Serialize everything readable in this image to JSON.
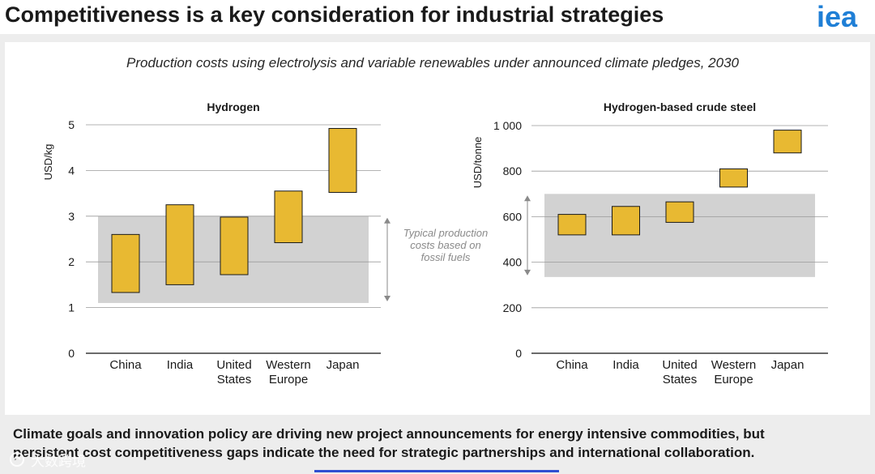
{
  "header": {
    "title": "Competitiveness is a key consideration for industrial strategies",
    "logo_text": "iea"
  },
  "subtitle": "Production costs using electrolysis and variable renewables under announced climate pledges, 2030",
  "footer": {
    "line1": "Climate goals and innovation policy are driving new project announcements for energy intensive commodities, but",
    "line2": "persistent cost competitiveness gaps indicate the need for strategic partnerships and international collaboration."
  },
  "watermark": {
    "text": "大数跨境"
  },
  "colors": {
    "bar_fill": "#e8b932",
    "bar_stroke": "#1a1a1a",
    "band_fill": "#d2d2d2",
    "grid": "#9a9a9a",
    "annotation": "#8a8a8a",
    "accent_line": "#2f4fd1"
  },
  "chart_data": [
    {
      "type": "floating-bar",
      "title": "Hydrogen",
      "ylabel": "USD/kg",
      "xlabel": "",
      "ylim": [
        0,
        5
      ],
      "ticks": [
        {
          "value": 0,
          "label": "0"
        },
        {
          "value": 1,
          "label": "1"
        },
        {
          "value": 2,
          "label": "2"
        },
        {
          "value": 3,
          "label": "3"
        },
        {
          "value": 4,
          "label": "4"
        },
        {
          "value": 5,
          "label": "5"
        }
      ],
      "categories": [
        {
          "lines": [
            "China"
          ]
        },
        {
          "lines": [
            "India"
          ]
        },
        {
          "lines": [
            "United",
            "States"
          ]
        },
        {
          "lines": [
            "Western",
            "Europe"
          ]
        },
        {
          "lines": [
            "Japan"
          ]
        }
      ],
      "ranges": [
        [
          1.33,
          2.6
        ],
        [
          1.5,
          3.25
        ],
        [
          1.72,
          2.98
        ],
        [
          2.42,
          3.55
        ],
        [
          3.52,
          4.92
        ]
      ],
      "band": {
        "low": 1.1,
        "high": 3.0,
        "label_lines": [
          "Typical production",
          "costs based on",
          "fossil fuels"
        ]
      }
    },
    {
      "type": "floating-bar",
      "title": "Hydrogen-based crude steel",
      "ylabel": "USD/tonne",
      "xlabel": "",
      "ylim": [
        0,
        1000
      ],
      "ticks": [
        {
          "value": 0,
          "label": "0"
        },
        {
          "value": 200,
          "label": "200"
        },
        {
          "value": 400,
          "label": "400"
        },
        {
          "value": 600,
          "label": "600"
        },
        {
          "value": 800,
          "label": "800"
        },
        {
          "value": 1000,
          "label": "1 000"
        }
      ],
      "categories": [
        {
          "lines": [
            "China"
          ]
        },
        {
          "lines": [
            "India"
          ]
        },
        {
          "lines": [
            "United",
            "States"
          ]
        },
        {
          "lines": [
            "Western",
            "Europe"
          ]
        },
        {
          "lines": [
            "Japan"
          ]
        }
      ],
      "ranges": [
        [
          520,
          610
        ],
        [
          520,
          645
        ],
        [
          575,
          665
        ],
        [
          730,
          810
        ],
        [
          880,
          980
        ]
      ],
      "band": {
        "low": 335,
        "high": 700,
        "label_lines": []
      }
    }
  ]
}
